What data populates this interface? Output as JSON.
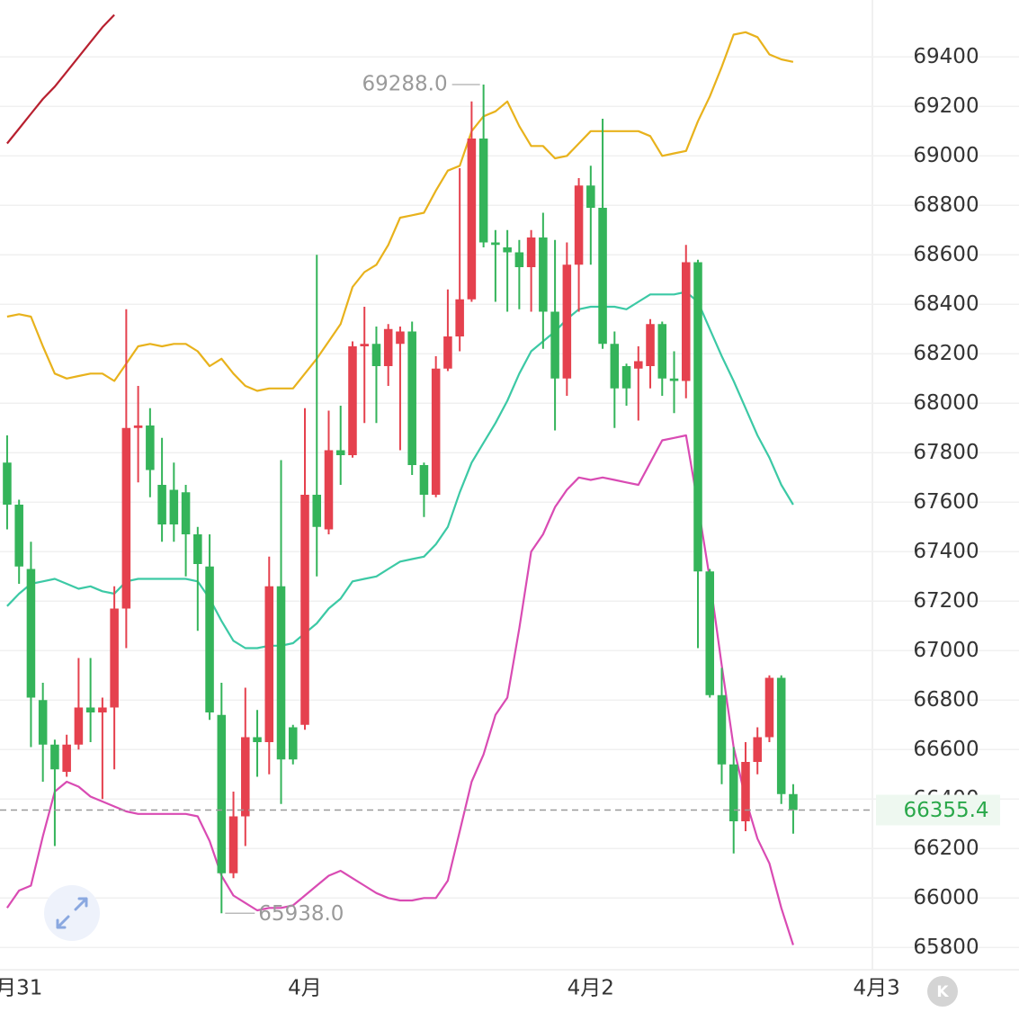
{
  "chart_data": {
    "type": "candlestick",
    "up_color": "#e5414e",
    "down_color": "#34b45a",
    "open": [
      67760,
      67590,
      67330,
      66800,
      66620,
      66510,
      66620,
      66770,
      66750,
      66770,
      67170,
      67900,
      67910,
      67670,
      67650,
      67640,
      67470,
      67340,
      66740,
      66100,
      66330,
      66650,
      66630,
      67260,
      66690,
      66700,
      67630,
      67490,
      67810,
      67790,
      68230,
      68240,
      68150,
      68240,
      68290,
      67750,
      67630,
      68140,
      68270,
      68420,
      69070,
      68650,
      68630,
      68610,
      68550,
      68670,
      68370,
      68100,
      68560,
      68880,
      68790,
      68240,
      68150,
      68140,
      68150,
      68320,
      68100,
      68090,
      68570,
      67320,
      66820,
      66540,
      66310,
      66550,
      66650,
      66890,
      66420
    ],
    "high": [
      67870,
      67610,
      67440,
      66870,
      66640,
      66660,
      66970,
      66970,
      66810,
      67260,
      68380,
      68070,
      67980,
      67860,
      67760,
      67670,
      67500,
      67470,
      66870,
      66430,
      66850,
      66760,
      67380,
      67770,
      66700,
      67980,
      68600,
      67970,
      67990,
      68250,
      68390,
      68310,
      68320,
      68310,
      68330,
      67760,
      68190,
      68460,
      68950,
      69220,
      69288,
      68700,
      68700,
      68660,
      68700,
      68770,
      68660,
      68650,
      68910,
      68960,
      69150,
      68290,
      68160,
      68230,
      68340,
      68330,
      68210,
      68640,
      68580,
      67330,
      66930,
      66610,
      66630,
      66690,
      66900,
      66900,
      66460
    ],
    "low": [
      67490,
      67270,
      66610,
      66470,
      66210,
      66490,
      66600,
      66630,
      66400,
      66520,
      67010,
      67680,
      67620,
      67440,
      67440,
      67300,
      67080,
      66720,
      65938,
      66080,
      66210,
      66490,
      66500,
      66380,
      66540,
      66680,
      67300,
      67470,
      67670,
      67780,
      67920,
      67920,
      68070,
      67810,
      67710,
      67540,
      67620,
      68130,
      68210,
      68410,
      68630,
      68410,
      68370,
      68380,
      68370,
      68220,
      67890,
      68030,
      68370,
      68560,
      68220,
      67900,
      67990,
      67930,
      68060,
      68030,
      67960,
      68020,
      67010,
      66810,
      66460,
      66180,
      66270,
      66500,
      66630,
      66380,
      66260
    ],
    "close": [
      67590,
      67340,
      66810,
      66620,
      66520,
      66620,
      66770,
      66750,
      66770,
      67170,
      67900,
      67910,
      67730,
      67510,
      67510,
      67470,
      67350,
      66750,
      66100,
      66330,
      66650,
      66630,
      67260,
      66560,
      66560,
      67630,
      67500,
      67810,
      67790,
      68230,
      68240,
      68150,
      68300,
      68290,
      67750,
      67630,
      68140,
      68270,
      68420,
      69070,
      68650,
      68640,
      68610,
      68550,
      68670,
      68370,
      68100,
      68560,
      68880,
      68790,
      68240,
      68060,
      68060,
      68170,
      68320,
      68100,
      68090,
      68570,
      67320,
      66820,
      66540,
      66310,
      66550,
      66650,
      66890,
      66420,
      66355.4
    ],
    "overlays": [
      {
        "color": "#e8b21c",
        "values": [
          68350,
          68360,
          68350,
          68230,
          68120,
          68100,
          68110,
          68120,
          68120,
          68090,
          68160,
          68230,
          68240,
          68230,
          68240,
          68240,
          68210,
          68150,
          68180,
          68120,
          68070,
          68050,
          68060,
          68060,
          68060,
          68120,
          68180,
          68250,
          68320,
          68470,
          68530,
          68560,
          68640,
          68750,
          68760,
          68770,
          68860,
          68940,
          68960,
          69100,
          69160,
          69180,
          69220,
          69120,
          69040,
          69040,
          68990,
          69000,
          69050,
          69100,
          69100,
          69100,
          69100,
          69100,
          69080,
          69000,
          69010,
          69020,
          69140,
          69240,
          69360,
          69490,
          69500,
          69480,
          69410,
          69390,
          69380
        ]
      },
      {
        "color": "#3cc9a5",
        "values": [
          67180,
          67230,
          67270,
          67280,
          67290,
          67270,
          67250,
          67260,
          67240,
          67230,
          67280,
          67290,
          67290,
          67290,
          67290,
          67290,
          67280,
          67210,
          67120,
          67040,
          67010,
          67010,
          67020,
          67020,
          67030,
          67070,
          67110,
          67170,
          67210,
          67280,
          67290,
          67300,
          67330,
          67360,
          67370,
          67380,
          67430,
          67500,
          67640,
          67760,
          67840,
          67920,
          68010,
          68120,
          68210,
          68250,
          68290,
          68340,
          68380,
          68390,
          68390,
          68390,
          68380,
          68410,
          68440,
          68440,
          68440,
          68450,
          68410,
          68300,
          68190,
          68090,
          67980,
          67870,
          67780,
          67670,
          67590
        ]
      },
      {
        "color": "#d94bb3",
        "values": [
          65960,
          66030,
          66050,
          66250,
          66430,
          66470,
          66450,
          66410,
          66390,
          66370,
          66350,
          66340,
          66340,
          66340,
          66340,
          66340,
          66330,
          66230,
          66090,
          66010,
          65980,
          65950,
          65960,
          65960,
          65970,
          66010,
          66050,
          66090,
          66110,
          66080,
          66050,
          66020,
          66000,
          65990,
          65990,
          66000,
          66000,
          66070,
          66270,
          66470,
          66580,
          66740,
          66810,
          67090,
          67400,
          67470,
          67580,
          67650,
          67700,
          67690,
          67700,
          67690,
          67680,
          67670,
          67760,
          67850,
          67860,
          67870,
          67590,
          67290,
          66940,
          66610,
          66400,
          66240,
          66140,
          65960,
          65810
        ]
      },
      {
        "color": "#b8202f",
        "values": [
          69050,
          69110,
          69170,
          69230,
          69280,
          69340,
          69400,
          69460,
          69520,
          69570,
          null,
          null,
          null,
          null,
          null,
          null,
          null,
          null,
          null,
          null,
          null,
          null,
          null,
          null,
          null,
          null,
          null,
          null,
          null,
          null,
          null,
          null,
          null,
          null,
          null,
          null,
          null,
          null,
          null,
          null,
          null,
          null,
          null,
          null,
          null,
          null,
          null,
          null,
          null,
          null,
          null,
          null,
          null,
          null,
          null,
          null,
          null,
          null,
          null,
          null,
          null,
          null,
          null,
          null,
          null,
          null,
          null
        ]
      }
    ],
    "annotations": [
      {
        "value": 69288,
        "label": "69288.0",
        "x": 40
      },
      {
        "value": 65938,
        "label": "65938.0",
        "x": 18
      }
    ],
    "ylim": [
      65710,
      69630
    ],
    "yticks": [
      65800,
      66000,
      66200,
      66400,
      66600,
      66800,
      67000,
      67200,
      67400,
      67600,
      67800,
      68000,
      68200,
      68400,
      68600,
      68800,
      69000,
      69200,
      69400
    ],
    "xlim": [
      -0.6,
      72.65
    ],
    "xticks": [
      {
        "value": 1,
        "label": "月31"
      },
      {
        "value": 25,
        "label": "4月"
      },
      {
        "value": 49,
        "label": "4月2"
      },
      {
        "value": 73,
        "label": "4月3"
      }
    ],
    "grid": true
  },
  "ui": {
    "k_button": "K"
  }
}
